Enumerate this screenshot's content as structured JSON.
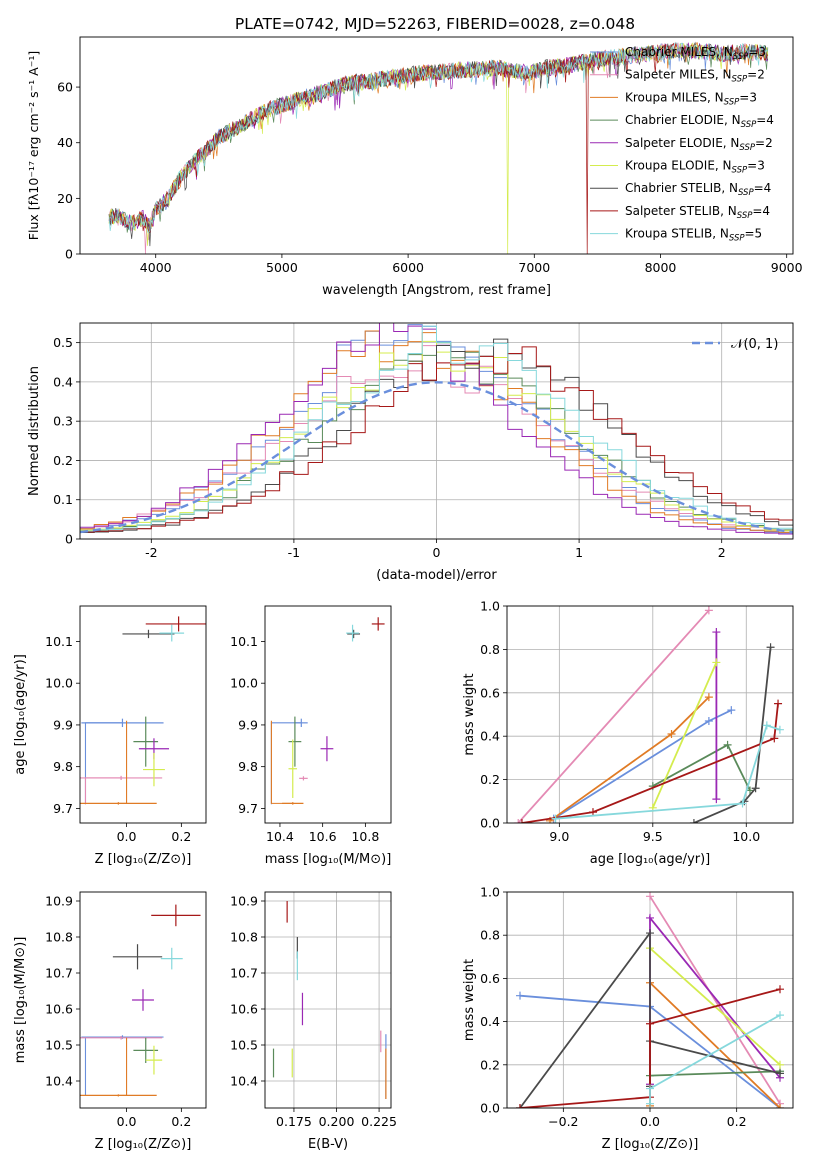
{
  "title": "PLATE=0742, MJD=52263, FIBERID=0028, z=0.048",
  "colors": {
    "Chabrier MILES": "#6a8fdc",
    "Salpeter MILES": "#e48ab4",
    "Kroupa MILES": "#e07b25",
    "Chabrier ELODIE": "#5a8a5a",
    "Salpeter ELODIE": "#9a28b4",
    "Kroupa ELODIE": "#d4ec4e",
    "Chabrier STELIB": "#4a4a4a",
    "Salpeter STELIB": "#a61818",
    "Kroupa STELIB": "#86d8dc"
  },
  "chart_data": [
    {
      "id": "spectrum",
      "type": "line",
      "title": "PLATE=0742, MJD=52263, FIBERID=0028, z=0.048",
      "xlabel": "wavelength [Angstrom, rest frame]",
      "ylabel": "Flux [fλ10⁻¹⁷ erg cm⁻² s⁻¹ A⁻¹]",
      "xlim": [
        3400,
        9050
      ],
      "ylim": [
        0,
        78
      ],
      "xticks": [
        4000,
        5000,
        6000,
        7000,
        8000,
        9000
      ],
      "yticks": [
        0,
        20,
        40,
        60
      ],
      "grid": false,
      "legend_position": "right",
      "x_range": [
        3630,
        8850
      ],
      "trend": {
        "x": [
          3630,
          3700,
          3800,
          3900,
          3950,
          4000,
          4100,
          4200,
          4300,
          4400,
          4500,
          4700,
          4900,
          5100,
          5300,
          5500,
          5800,
          6100,
          6400,
          6700,
          6950,
          7100,
          7300,
          7500,
          7700,
          7900,
          8100,
          8300,
          8500,
          8700,
          8850
        ],
        "y": [
          13,
          14,
          11,
          13,
          10,
          16,
          20,
          28,
          33,
          37,
          42,
          47,
          52,
          55,
          58,
          61,
          63,
          65,
          66,
          67,
          65,
          67,
          68,
          70,
          71,
          72,
          73,
          73,
          72,
          73,
          72
        ]
      },
      "dropouts": [
        {
          "series": "Salpeter MILES",
          "x": 3920
        },
        {
          "series": "Kroupa ELODIE",
          "x": 6790
        },
        {
          "series": "Salpeter STELIB",
          "x": 7420
        }
      ],
      "legend": [
        {
          "label": "Chabrier MILES, N",
          "sub": "SSP",
          "suffix": "=3"
        },
        {
          "label": "Salpeter MILES, N",
          "sub": "SSP",
          "suffix": "=2"
        },
        {
          "label": "Kroupa MILES, N",
          "sub": "SSP",
          "suffix": "=3"
        },
        {
          "label": "Chabrier ELODIE, N",
          "sub": "SSP",
          "suffix": "=4"
        },
        {
          "label": "Salpeter ELODIE, N",
          "sub": "SSP",
          "suffix": "=2"
        },
        {
          "label": "Kroupa ELODIE, N",
          "sub": "SSP",
          "suffix": "=3"
        },
        {
          "label": "Chabrier STELIB, N",
          "sub": "SSP",
          "suffix": "=4"
        },
        {
          "label": "Salpeter STELIB, N",
          "sub": "SSP",
          "suffix": "=4"
        },
        {
          "label": "Kroupa STELIB, N",
          "sub": "SSP",
          "suffix": "=5"
        }
      ]
    },
    {
      "id": "residuals",
      "type": "line",
      "xlabel": "(data-model)/error",
      "ylabel": "Normed distribution",
      "xlim": [
        -2.5,
        2.5
      ],
      "ylim": [
        0,
        0.55
      ],
      "xticks": [
        -2,
        -1,
        0,
        1,
        2
      ],
      "yticks": [
        0.0,
        0.1,
        0.2,
        0.3,
        0.4,
        0.5
      ],
      "grid": true,
      "legend_position": "top-right",
      "reference_curve": {
        "label": "𝒩(0, 1)",
        "style": "dashed",
        "mean": 0,
        "sigma": 1
      },
      "bins": {
        "start": -2.5,
        "width": 0.1,
        "count": 50
      },
      "histogram_series": [
        {
          "series": "Chabrier MILES",
          "peak": 0.51,
          "sigma": 0.85,
          "offset": -0.15
        },
        {
          "series": "Salpeter MILES",
          "peak": 0.43,
          "sigma": 0.92,
          "offset": -0.1
        },
        {
          "series": "Kroupa MILES",
          "peak": 0.49,
          "sigma": 0.86,
          "offset": -0.2
        },
        {
          "series": "Chabrier ELODIE",
          "peak": 0.44,
          "sigma": 0.88,
          "offset": 0.05
        },
        {
          "series": "Salpeter ELODIE",
          "peak": 0.5,
          "sigma": 0.82,
          "offset": -0.3
        },
        {
          "series": "Kroupa ELODIE",
          "peak": 0.46,
          "sigma": 0.87,
          "offset": 0.0
        },
        {
          "series": "Chabrier STELIB",
          "peak": 0.47,
          "sigma": 0.9,
          "offset": 0.3
        },
        {
          "series": "Salpeter STELIB",
          "peak": 0.45,
          "sigma": 0.92,
          "offset": 0.35
        },
        {
          "series": "Kroupa STELIB",
          "peak": 0.48,
          "sigma": 0.88,
          "offset": 0.1
        }
      ]
    },
    {
      "id": "age_vs_Z",
      "type": "scatter",
      "xlabel": "Z [log₁₀(Z/Z⊙)]",
      "ylabel": "age  [log₁₀(age/yr)]",
      "xlim": [
        -0.17,
        0.29
      ],
      "ylim": [
        9.665,
        10.185
      ],
      "xticks": [
        0.0,
        0.2
      ],
      "xticklabels": [
        "0.0",
        "0.2"
      ],
      "yticks": [
        9.7,
        9.8,
        9.9,
        10.0,
        10.1
      ],
      "yticklabels": [
        "9.7",
        "9.8",
        "9.9",
        "10.0",
        "10.1"
      ],
      "grid": false,
      "points": [
        {
          "series": "Chabrier MILES",
          "x": -0.015,
          "y": 9.905,
          "ex": 0.15,
          "ey": 0.01,
          "corner": [
            -0.15,
            9.71
          ]
        },
        {
          "series": "Salpeter MILES",
          "x": -0.02,
          "y": 9.773,
          "ex": 0.15,
          "ey": 0.005,
          "corner": [
            -0.15,
            9.71
          ]
        },
        {
          "series": "Kroupa MILES",
          "x": -0.03,
          "y": 9.712,
          "ex": 0.14,
          "ey": 0.003,
          "corner": [
            0.0,
            9.91
          ]
        },
        {
          "series": "Chabrier ELODIE",
          "x": 0.07,
          "y": 9.86,
          "ex": 0.045,
          "ey": 0.06
        },
        {
          "series": "Salpeter ELODIE",
          "x": 0.1,
          "y": 9.843,
          "ex": 0.055,
          "ey": 0.025
        },
        {
          "series": "Kroupa ELODIE",
          "x": 0.1,
          "y": 9.793,
          "ex": 0.04,
          "ey": 0.04
        },
        {
          "series": "Chabrier STELIB",
          "x": 0.08,
          "y": 10.118,
          "ex": 0.095,
          "ey": 0.01
        },
        {
          "series": "Salpeter STELIB",
          "x": 0.19,
          "y": 10.142,
          "ex": 0.12,
          "ey": 0.018
        },
        {
          "series": "Kroupa STELIB",
          "x": 0.165,
          "y": 10.12,
          "ex": 0.045,
          "ey": 0.02
        }
      ]
    },
    {
      "id": "age_vs_mass",
      "type": "scatter",
      "xlabel": "mass [log₁₀(M/M⊙)]",
      "xlim": [
        10.33,
        10.92
      ],
      "ylim": [
        9.665,
        10.185
      ],
      "xticks": [
        10.4,
        10.6,
        10.8
      ],
      "xticklabels": [
        "10.4",
        "10.6",
        "10.8"
      ],
      "yticks": [
        9.7,
        9.8,
        9.9,
        10.0,
        10.1
      ],
      "yticklabels": [
        "9.7",
        "9.8",
        "9.9",
        "10.0",
        "10.1"
      ],
      "grid": false,
      "points": [
        {
          "series": "Chabrier MILES",
          "x": 10.5,
          "y": 9.905,
          "ex": 0.03,
          "ey": 0.01,
          "corner": [
            10.36,
            9.71
          ]
        },
        {
          "series": "Salpeter MILES",
          "x": 10.51,
          "y": 9.772,
          "ex": 0.02,
          "ey": 0.005
        },
        {
          "series": "Kroupa MILES",
          "x": 10.46,
          "y": 9.712,
          "ex": 0.05,
          "ey": 0.003,
          "corner": [
            10.36,
            9.91
          ]
        },
        {
          "series": "Chabrier ELODIE",
          "x": 10.47,
          "y": 9.86,
          "ex": 0.03,
          "ey": 0.06
        },
        {
          "series": "Salpeter ELODIE",
          "x": 10.62,
          "y": 9.843,
          "ex": 0.03,
          "ey": 0.03
        },
        {
          "series": "Kroupa ELODIE",
          "x": 10.46,
          "y": 9.795,
          "ex": 0.02,
          "ey": 0.07
        },
        {
          "series": "Chabrier STELIB",
          "x": 10.745,
          "y": 10.118,
          "ex": 0.03,
          "ey": 0.01
        },
        {
          "series": "Salpeter STELIB",
          "x": 10.86,
          "y": 10.142,
          "ex": 0.03,
          "ey": 0.016
        },
        {
          "series": "Kroupa STELIB",
          "x": 10.74,
          "y": 10.12,
          "ex": 0.03,
          "ey": 0.02
        }
      ]
    },
    {
      "id": "weight_vs_age",
      "type": "line",
      "xlabel": "age  [log₁₀(age/yr)]",
      "ylabel": "mass weight",
      "xlim": [
        8.72,
        10.25
      ],
      "ylim": [
        0.0,
        1.0
      ],
      "xticks": [
        9.0,
        9.5,
        10.0
      ],
      "xticklabels": [
        "9.0",
        "9.5",
        "10.0"
      ],
      "yticks": [
        0.0,
        0.2,
        0.4,
        0.6,
        0.8,
        1.0
      ],
      "yticklabels": [
        "0.0",
        "0.2",
        "0.4",
        "0.6",
        "0.8",
        "1.0"
      ],
      "grid": true,
      "series": [
        {
          "name": "Chabrier MILES",
          "x": [
            8.97,
            9.8,
            9.92
          ],
          "y": [
            0.02,
            0.47,
            0.52
          ]
        },
        {
          "name": "Salpeter MILES",
          "x": [
            8.78,
            9.8
          ],
          "y": [
            0.0,
            0.98
          ]
        },
        {
          "name": "Kroupa MILES",
          "x": [
            8.95,
            9.6,
            9.8
          ],
          "y": [
            0.01,
            0.41,
            0.58
          ]
        },
        {
          "name": "Chabrier ELODIE",
          "x": [
            9.5,
            9.9,
            10.02
          ],
          "y": [
            0.17,
            0.36,
            0.15
          ]
        },
        {
          "name": "Salpeter ELODIE",
          "x": [
            9.84,
            9.84
          ],
          "y": [
            0.11,
            0.88
          ]
        },
        {
          "name": "Kroupa ELODIE",
          "x": [
            9.5,
            9.84
          ],
          "y": [
            0.07,
            0.74
          ]
        },
        {
          "name": "Chabrier STELIB",
          "x": [
            9.72,
            9.99,
            10.05,
            10.13
          ],
          "y": [
            0.0,
            0.1,
            0.16,
            0.81
          ]
        },
        {
          "name": "Salpeter STELIB",
          "x": [
            8.8,
            9.18,
            10.15,
            10.17
          ],
          "y": [
            0.0,
            0.05,
            0.39,
            0.55
          ]
        },
        {
          "name": "Kroupa STELIB",
          "x": [
            8.98,
            9.98,
            10.11,
            10.18
          ],
          "y": [
            0.02,
            0.09,
            0.45,
            0.43
          ]
        }
      ]
    },
    {
      "id": "mass_vs_Z",
      "type": "scatter",
      "xlabel": "Z [log₁₀(Z/Z⊙)]",
      "ylabel": "mass [log₁₀(M/M⊙)]",
      "xlim": [
        -0.17,
        0.29
      ],
      "ylim": [
        10.325,
        10.925
      ],
      "xticks": [
        0.0,
        0.2
      ],
      "xticklabels": [
        "0.0",
        "0.2"
      ],
      "yticks": [
        10.4,
        10.5,
        10.6,
        10.7,
        10.8,
        10.9
      ],
      "yticklabels": [
        "10.4",
        "10.5",
        "10.6",
        "10.7",
        "10.8",
        "10.9"
      ],
      "grid": false,
      "points": [
        {
          "series": "Chabrier MILES",
          "x": -0.015,
          "y": 10.522,
          "ex": 0.15,
          "ey": 0.005,
          "corner": [
            -0.15,
            10.36
          ]
        },
        {
          "series": "Salpeter MILES",
          "x": -0.02,
          "y": 10.52,
          "ex": 0.15,
          "ey": 0.005
        },
        {
          "series": "Kroupa MILES",
          "x": -0.03,
          "y": 10.36,
          "ex": 0.14,
          "ey": 0.003,
          "corner": [
            0.0,
            10.52
          ]
        },
        {
          "series": "Chabrier ELODIE",
          "x": 0.07,
          "y": 10.485,
          "ex": 0.045,
          "ey": 0.035
        },
        {
          "series": "Salpeter ELODIE",
          "x": 0.06,
          "y": 10.625,
          "ex": 0.04,
          "ey": 0.03
        },
        {
          "series": "Kroupa ELODIE",
          "x": 0.1,
          "y": 10.458,
          "ex": 0.03,
          "ey": 0.04
        },
        {
          "series": "Chabrier STELIB",
          "x": 0.04,
          "y": 10.745,
          "ex": 0.09,
          "ey": 0.035
        },
        {
          "series": "Salpeter STELIB",
          "x": 0.18,
          "y": 10.86,
          "ex": 0.09,
          "ey": 0.03
        },
        {
          "series": "Kroupa STELIB",
          "x": 0.165,
          "y": 10.74,
          "ex": 0.04,
          "ey": 0.03
        }
      ]
    },
    {
      "id": "mass_vs_ebv",
      "type": "scatter",
      "xlabel": "E(B-V)",
      "xlim": [
        0.158,
        0.232
      ],
      "ylim": [
        10.325,
        10.925
      ],
      "xticks": [
        0.175,
        0.2,
        0.225
      ],
      "xticklabels": [
        "0.175",
        "0.200",
        "0.225"
      ],
      "yticks": [
        10.4,
        10.5,
        10.6,
        10.7,
        10.8,
        10.9
      ],
      "yticklabels": [
        "10.4",
        "10.5",
        "10.6",
        "10.7",
        "10.8",
        "10.9"
      ],
      "grid": true,
      "points": [
        {
          "series": "Chabrier MILES",
          "x": 0.229,
          "y": 10.44,
          "ex": 0.0,
          "ey": 0.09
        },
        {
          "series": "Salpeter MILES",
          "x": 0.226,
          "y": 10.51,
          "ex": 0.0,
          "ey": 0.03
        },
        {
          "series": "Kroupa MILES",
          "x": 0.229,
          "y": 10.42,
          "ex": 0.0,
          "ey": 0.07
        },
        {
          "series": "Chabrier ELODIE",
          "x": 0.163,
          "y": 10.45,
          "ex": 0.0,
          "ey": 0.04
        },
        {
          "series": "Salpeter ELODIE",
          "x": 0.18,
          "y": 10.6,
          "ex": 0.0,
          "ey": 0.045
        },
        {
          "series": "Kroupa ELODIE",
          "x": 0.174,
          "y": 10.45,
          "ex": 0.0,
          "ey": 0.04
        },
        {
          "series": "Chabrier STELIB",
          "x": 0.177,
          "y": 10.77,
          "ex": 0.0,
          "ey": 0.03
        },
        {
          "series": "Salpeter STELIB",
          "x": 0.171,
          "y": 10.87,
          "ex": 0.0,
          "ey": 0.03
        },
        {
          "series": "Kroupa STELIB",
          "x": 0.177,
          "y": 10.72,
          "ex": 0.0,
          "ey": 0.04
        }
      ]
    },
    {
      "id": "weight_vs_Z",
      "type": "line",
      "xlabel": "Z [log₁₀(Z/Z⊙)]",
      "ylabel": "mass weight",
      "xlim": [
        -0.33,
        0.33
      ],
      "ylim": [
        0.0,
        1.0
      ],
      "xticks": [
        -0.2,
        0.0,
        0.2
      ],
      "xticklabels": [
        "−0.2",
        "0.0",
        "0.2"
      ],
      "yticks": [
        0.0,
        0.2,
        0.4,
        0.6,
        0.8,
        1.0
      ],
      "yticklabels": [
        "0.0",
        "0.2",
        "0.4",
        "0.6",
        "0.8",
        "1.0"
      ],
      "grid": true,
      "series": [
        {
          "name": "Chabrier MILES",
          "x": [
            -0.3,
            0.0,
            0.3
          ],
          "y": [
            0.52,
            0.47,
            0.0
          ]
        },
        {
          "name": "Salpeter MILES",
          "x": [
            0.0,
            0.3
          ],
          "y": [
            0.98,
            0.02
          ]
        },
        {
          "name": "Kroupa MILES",
          "x": [
            0.0,
            0.0,
            0.3
          ],
          "y": [
            0.01,
            0.58,
            0.0
          ]
        },
        {
          "name": "Chabrier ELODIE",
          "x": [
            0.0,
            0.3,
            0.3
          ],
          "y": [
            0.15,
            0.17,
            0.16
          ]
        },
        {
          "name": "Salpeter ELODIE",
          "x": [
            0.0,
            0.0,
            0.3
          ],
          "y": [
            0.11,
            0.88,
            0.14
          ]
        },
        {
          "name": "Kroupa ELODIE",
          "x": [
            0.0,
            0.3
          ],
          "y": [
            0.74,
            0.2
          ]
        },
        {
          "name": "Chabrier STELIB",
          "x": [
            -0.3,
            0.0,
            0.0,
            0.0,
            0.3
          ],
          "y": [
            0.0,
            0.81,
            0.1,
            0.31,
            0.16
          ]
        },
        {
          "name": "Salpeter STELIB",
          "x": [
            -0.3,
            0.0,
            0.0,
            0.3
          ],
          "y": [
            0.0,
            0.05,
            0.39,
            0.55
          ]
        },
        {
          "name": "Kroupa STELIB",
          "x": [
            0.0,
            0.0,
            0.3
          ],
          "y": [
            0.02,
            0.09,
            0.43
          ]
        }
      ]
    }
  ]
}
